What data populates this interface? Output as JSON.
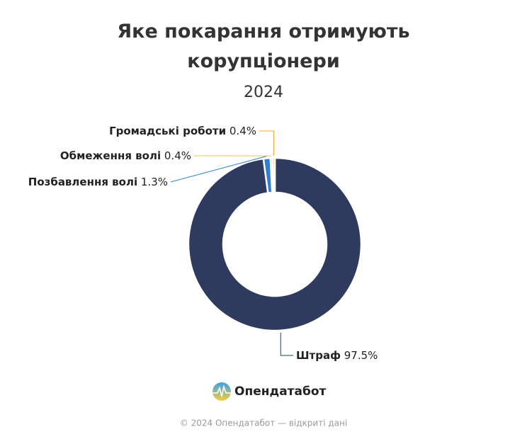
{
  "chart_data": {
    "type": "donut",
    "title": "Яке покарання отримують корупціонери",
    "subtitle": "2024",
    "categories": [
      "Штраф",
      "Позбавлення волі",
      "Обмеження волі",
      "Громадські роботи"
    ],
    "values": [
      97.5,
      1.3,
      0.4,
      0.4
    ],
    "value_labels": [
      "97.5%",
      "1.3%",
      "0.4%",
      "0.4%"
    ],
    "colors": [
      "#2e3b5e",
      "#2f7fd1",
      "#f5c842",
      "#f0a534"
    ]
  },
  "brand": "Опендатабот",
  "footer": "© 2024 Опендатабот — відкриті дані"
}
